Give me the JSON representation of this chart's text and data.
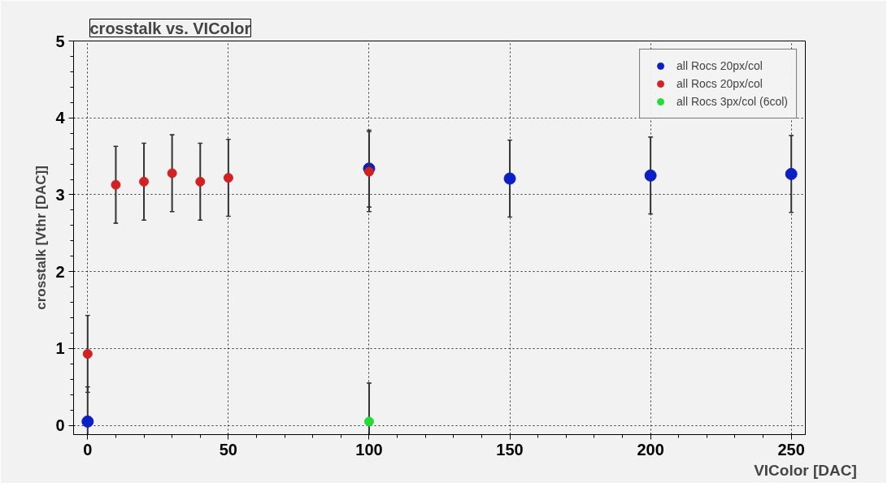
{
  "chart_data": {
    "type": "scatter",
    "title": "crosstalk vs. VIColor",
    "xlabel": "VIColor [DAC]",
    "ylabel": "crosstalk [Vthr [DAC]]",
    "xlim": [
      -5,
      255
    ],
    "ylim": [
      -0.12,
      5
    ],
    "xticks": [
      0,
      50,
      100,
      150,
      200,
      250
    ],
    "yticks": [
      0,
      1,
      2,
      3,
      4,
      5
    ],
    "grid": true,
    "legend": "top right",
    "marker": "circle",
    "series": [
      {
        "name": "all Rocs 20px/col",
        "color": "#0a1fc8",
        "x": [
          0,
          100,
          150,
          200,
          250
        ],
        "values": [
          0.05,
          3.34,
          3.21,
          3.25,
          3.27
        ],
        "errors": [
          0.45,
          0.5,
          0.5,
          0.5,
          0.5
        ]
      },
      {
        "name": "all Rocs 20px/col",
        "color": "#d42020",
        "x": [
          0,
          10,
          20,
          30,
          40,
          50,
          100
        ],
        "values": [
          0.93,
          3.13,
          3.17,
          3.28,
          3.17,
          3.22,
          3.3
        ],
        "errors": [
          0.5,
          0.5,
          0.5,
          0.5,
          0.5,
          0.5,
          0.52
        ]
      },
      {
        "name": "all Rocs 3px/col (6col)",
        "color": "#22dd33",
        "x": [
          100
        ],
        "values": [
          0.05
        ],
        "errors": [
          0.5
        ]
      }
    ]
  }
}
